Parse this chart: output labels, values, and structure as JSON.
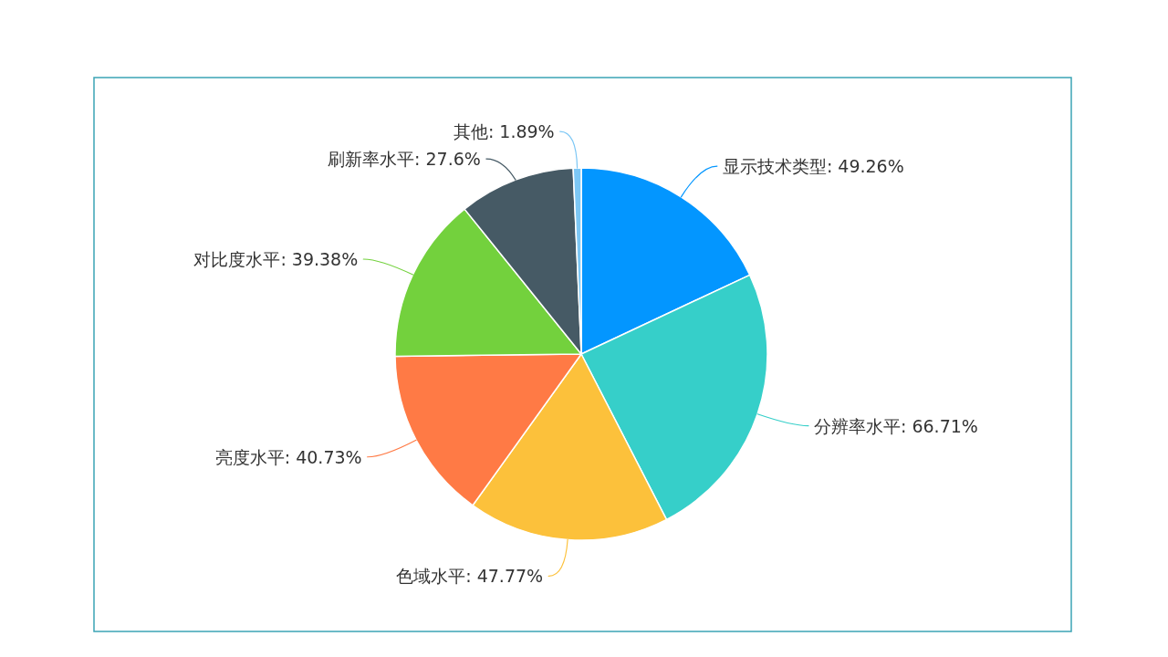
{
  "chart_data": {
    "type": "pie",
    "categories": [
      "显示技术类型",
      "分辨率水平",
      "色域水平",
      "亮度水平",
      "对比度水平",
      "刷新率水平",
      "其他"
    ],
    "values": [
      49.26,
      66.71,
      47.77,
      40.73,
      39.38,
      27.6,
      1.89
    ],
    "colors": [
      "#0396ff",
      "#36cfc9",
      "#fcc13b",
      "#ff7a45",
      "#73d13d",
      "#465a65",
      "#7cc7f5"
    ],
    "value_labels": [
      ": 49.26%",
      ": 66.71%",
      ": 47.77%",
      ": 40.73%",
      ": 39.38%",
      ": 27.6%",
      ": 1.89%"
    ]
  }
}
